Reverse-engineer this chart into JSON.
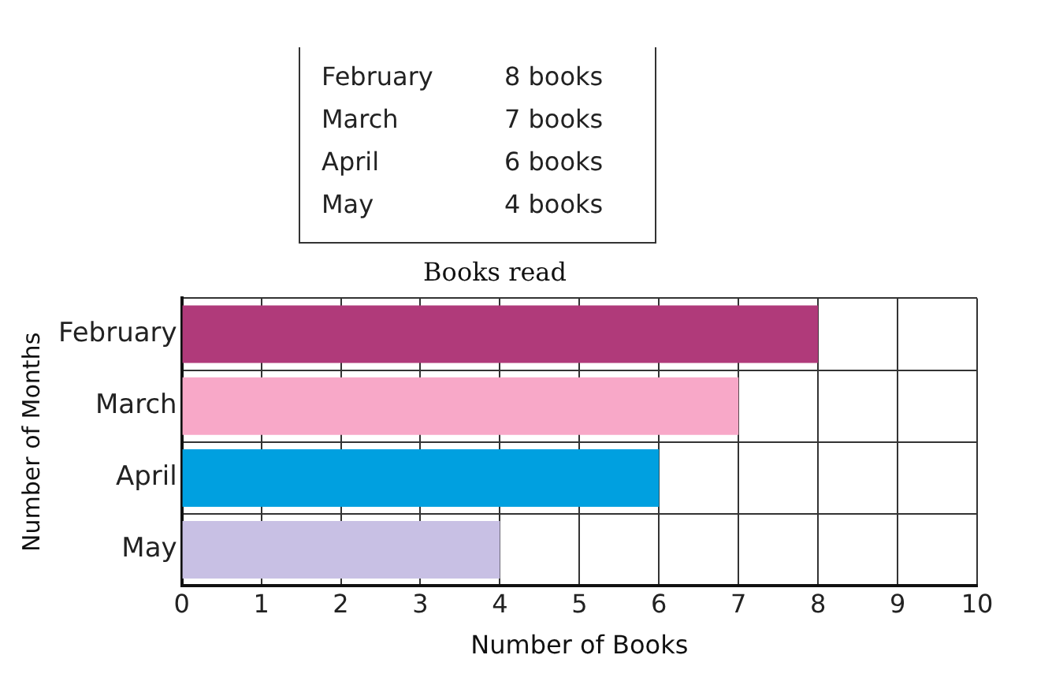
{
  "chart_data": {
    "type": "bar",
    "orientation": "horizontal",
    "title": "Books read",
    "xlabel": "Number of Books",
    "ylabel": "Number of Months",
    "categories": [
      "February",
      "March",
      "April",
      "May"
    ],
    "values": [
      8,
      7,
      6,
      4
    ],
    "colors": [
      "#b03a7a",
      "#f8a8c8",
      "#00a0e0",
      "#c8c0e4"
    ],
    "annotations": [
      "February",
      "8 books",
      "March",
      "7 books",
      "April",
      "6 books",
      "May",
      "4 books"
    ],
    "xlim": [
      0,
      10
    ],
    "xticks": [
      0,
      1,
      2,
      3,
      4,
      5,
      6,
      7,
      8,
      9,
      10
    ],
    "grid": true
  }
}
